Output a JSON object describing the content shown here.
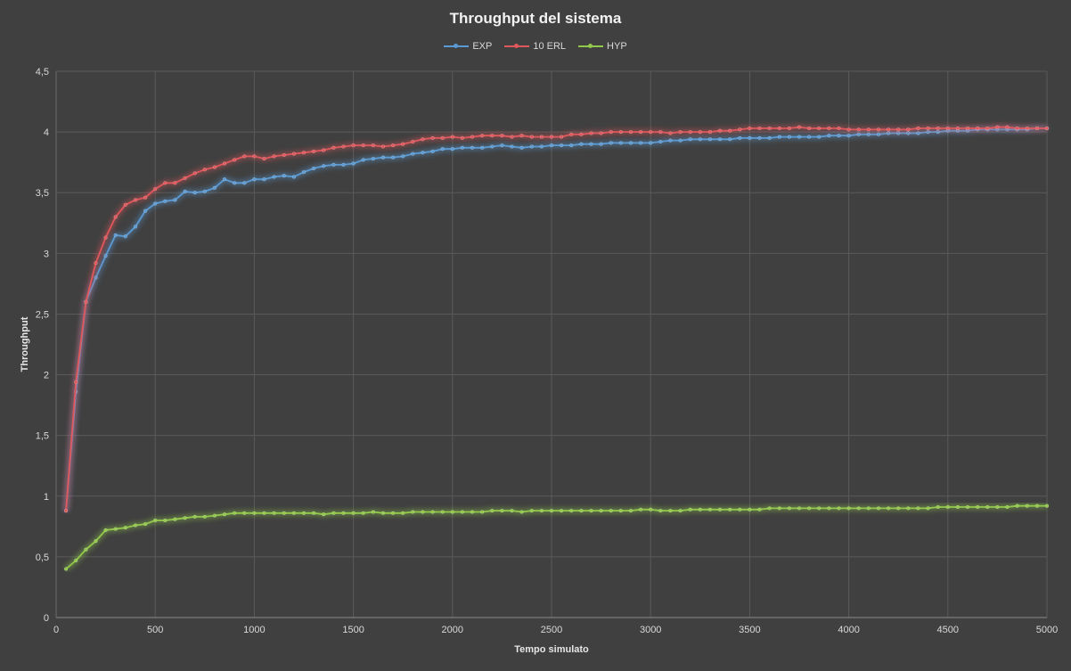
{
  "chart_data": {
    "type": "line",
    "title": "Throughput del sistema",
    "xlabel": "Tempo simulato",
    "ylabel": "Throughput",
    "xlim": [
      0,
      5000
    ],
    "ylim": [
      0,
      4.5
    ],
    "x_ticks": [
      "0",
      "500",
      "1000",
      "1500",
      "2000",
      "2500",
      "3000",
      "3500",
      "4000",
      "4500",
      "5000"
    ],
    "y_ticks": [
      "0",
      "0,5",
      "1",
      "1,5",
      "2",
      "2,5",
      "3",
      "3,5",
      "4",
      "4,5"
    ],
    "grid": true,
    "legend_position": "top",
    "x": [
      50,
      100,
      150,
      200,
      250,
      300,
      350,
      400,
      450,
      500,
      550,
      600,
      650,
      700,
      750,
      800,
      850,
      900,
      950,
      1000,
      1050,
      1100,
      1150,
      1200,
      1250,
      1300,
      1350,
      1400,
      1450,
      1500,
      1550,
      1600,
      1650,
      1700,
      1750,
      1800,
      1850,
      1900,
      1950,
      2000,
      2050,
      2100,
      2150,
      2200,
      2250,
      2300,
      2350,
      2400,
      2450,
      2500,
      2550,
      2600,
      2650,
      2700,
      2750,
      2800,
      2850,
      2900,
      2950,
      3000,
      3050,
      3100,
      3150,
      3200,
      3250,
      3300,
      3350,
      3400,
      3450,
      3500,
      3550,
      3600,
      3650,
      3700,
      3750,
      3800,
      3850,
      3900,
      3950,
      4000,
      4050,
      4100,
      4150,
      4200,
      4250,
      4300,
      4350,
      4400,
      4450,
      4500,
      4550,
      4600,
      4650,
      4700,
      4750,
      4800,
      4850,
      4900,
      4950,
      5000
    ],
    "series": [
      {
        "name": "EXP",
        "color": "#5b9bd5",
        "values": [
          0.88,
          1.86,
          2.6,
          2.8,
          2.98,
          3.15,
          3.14,
          3.22,
          3.35,
          3.41,
          3.43,
          3.44,
          3.51,
          3.5,
          3.51,
          3.54,
          3.61,
          3.58,
          3.58,
          3.61,
          3.61,
          3.63,
          3.64,
          3.63,
          3.67,
          3.7,
          3.72,
          3.73,
          3.73,
          3.74,
          3.77,
          3.78,
          3.79,
          3.79,
          3.8,
          3.82,
          3.83,
          3.84,
          3.86,
          3.86,
          3.87,
          3.87,
          3.87,
          3.88,
          3.89,
          3.88,
          3.87,
          3.88,
          3.88,
          3.89,
          3.89,
          3.89,
          3.9,
          3.9,
          3.9,
          3.91,
          3.91,
          3.91,
          3.91,
          3.91,
          3.92,
          3.93,
          3.93,
          3.94,
          3.94,
          3.94,
          3.94,
          3.94,
          3.95,
          3.95,
          3.95,
          3.95,
          3.96,
          3.96,
          3.96,
          3.96,
          3.96,
          3.97,
          3.97,
          3.97,
          3.98,
          3.98,
          3.98,
          3.99,
          3.99,
          3.99,
          3.99,
          4.0,
          4.0,
          4.01,
          4.01,
          4.01,
          4.02,
          4.02,
          4.02,
          4.02,
          4.02,
          4.02,
          4.03,
          4.03
        ]
      },
      {
        "name": "10 ERL",
        "color": "#e0575c",
        "values": [
          0.88,
          1.94,
          2.6,
          2.92,
          3.13,
          3.3,
          3.4,
          3.44,
          3.46,
          3.53,
          3.58,
          3.58,
          3.62,
          3.66,
          3.69,
          3.71,
          3.74,
          3.77,
          3.8,
          3.8,
          3.78,
          3.8,
          3.81,
          3.82,
          3.83,
          3.84,
          3.85,
          3.87,
          3.88,
          3.89,
          3.89,
          3.89,
          3.88,
          3.89,
          3.9,
          3.92,
          3.94,
          3.95,
          3.95,
          3.96,
          3.95,
          3.96,
          3.97,
          3.97,
          3.97,
          3.96,
          3.97,
          3.96,
          3.96,
          3.96,
          3.96,
          3.98,
          3.98,
          3.99,
          3.99,
          4.0,
          4.0,
          4.0,
          4.0,
          4.0,
          4.0,
          3.99,
          4.0,
          4.0,
          4.0,
          4.0,
          4.01,
          4.01,
          4.02,
          4.03,
          4.03,
          4.03,
          4.03,
          4.03,
          4.04,
          4.03,
          4.03,
          4.03,
          4.03,
          4.02,
          4.02,
          4.02,
          4.02,
          4.02,
          4.02,
          4.02,
          4.03,
          4.03,
          4.03,
          4.03,
          4.03,
          4.03,
          4.03,
          4.03,
          4.04,
          4.04,
          4.03,
          4.03,
          4.03,
          4.03
        ]
      },
      {
        "name": "HYP",
        "color": "#92c94a",
        "values": [
          0.4,
          0.47,
          0.56,
          0.63,
          0.72,
          0.73,
          0.74,
          0.76,
          0.77,
          0.8,
          0.8,
          0.81,
          0.82,
          0.83,
          0.83,
          0.84,
          0.85,
          0.86,
          0.86,
          0.86,
          0.86,
          0.86,
          0.86,
          0.86,
          0.86,
          0.86,
          0.85,
          0.86,
          0.86,
          0.86,
          0.86,
          0.87,
          0.86,
          0.86,
          0.86,
          0.87,
          0.87,
          0.87,
          0.87,
          0.87,
          0.87,
          0.87,
          0.87,
          0.88,
          0.88,
          0.88,
          0.87,
          0.88,
          0.88,
          0.88,
          0.88,
          0.88,
          0.88,
          0.88,
          0.88,
          0.88,
          0.88,
          0.88,
          0.89,
          0.89,
          0.88,
          0.88,
          0.88,
          0.89,
          0.89,
          0.89,
          0.89,
          0.89,
          0.89,
          0.89,
          0.89,
          0.9,
          0.9,
          0.9,
          0.9,
          0.9,
          0.9,
          0.9,
          0.9,
          0.9,
          0.9,
          0.9,
          0.9,
          0.9,
          0.9,
          0.9,
          0.9,
          0.9,
          0.91,
          0.91,
          0.91,
          0.91,
          0.91,
          0.91,
          0.91,
          0.91,
          0.92,
          0.92,
          0.92,
          0.92
        ]
      }
    ]
  }
}
